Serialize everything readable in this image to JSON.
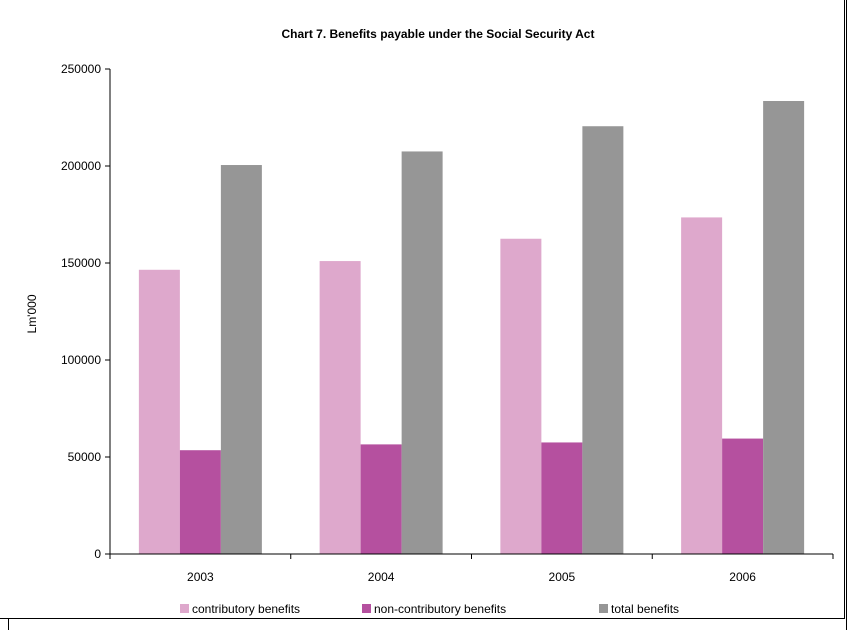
{
  "chart_data": {
    "type": "bar",
    "title": "Chart 7.  Benefits payable under the Social Security Act",
    "xlabel": "",
    "ylabel": "Lm'000",
    "categories": [
      "2003",
      "2004",
      "2005",
      "2006"
    ],
    "ylim": [
      0,
      250000
    ],
    "yticks": [
      0,
      50000,
      100000,
      150000,
      200000,
      250000
    ],
    "grid": false,
    "legend": "bottom",
    "series": [
      {
        "name": "contributory benefits",
        "color": "#dea8cc",
        "values": [
          146500,
          151000,
          162500,
          173500
        ]
      },
      {
        "name": "non-contributory benefits",
        "color": "#b5509f",
        "values": [
          53500,
          56500,
          57500,
          59500
        ]
      },
      {
        "name": "total benefits",
        "color": "#969696",
        "values": [
          200500,
          207500,
          220500,
          233500
        ]
      }
    ]
  }
}
